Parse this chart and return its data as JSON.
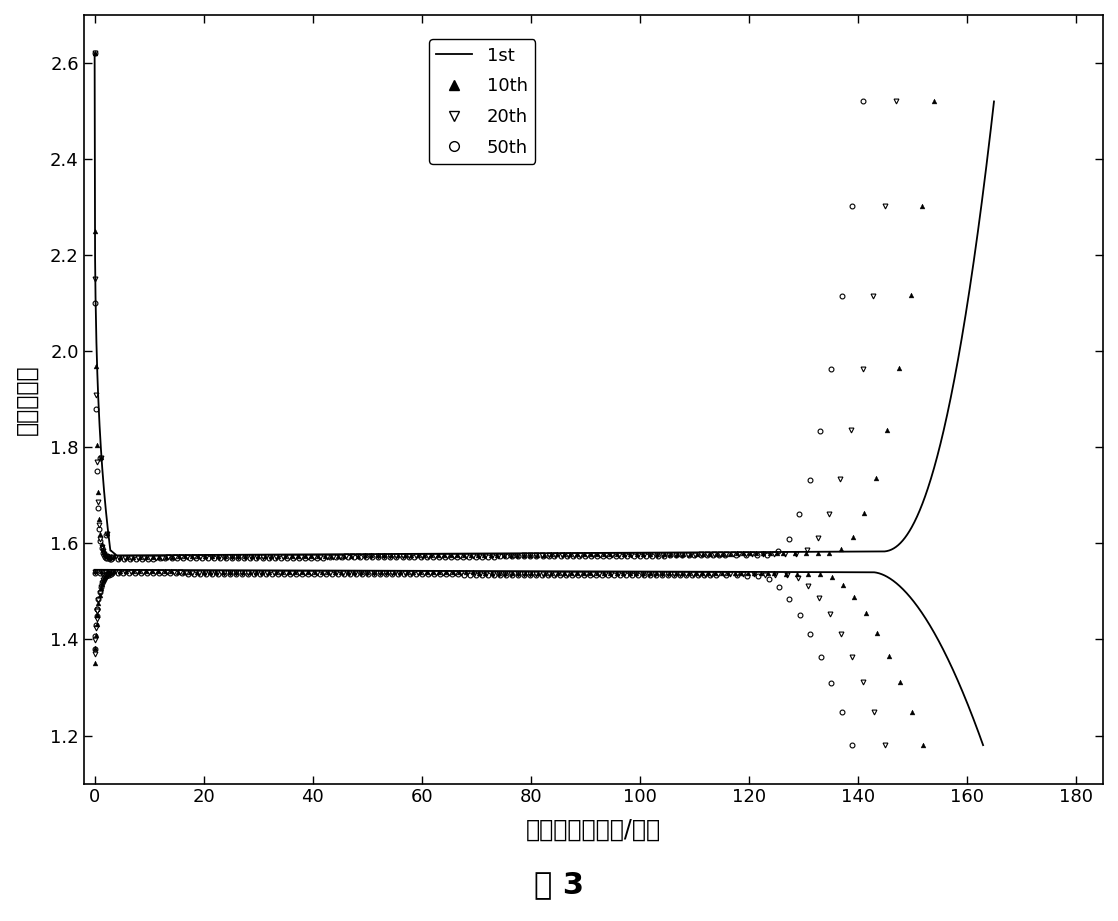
{
  "xlabel": "比容量（毫安时/克）",
  "ylabel": "电压（伏）",
  "figure_label": "图 3",
  "xlim": [
    -2,
    185
  ],
  "ylim": [
    1.1,
    2.7
  ],
  "xticks": [
    0,
    20,
    40,
    60,
    80,
    100,
    120,
    140,
    160,
    180
  ],
  "yticks": [
    1.2,
    1.4,
    1.6,
    1.8,
    2.0,
    2.2,
    2.4,
    2.6
  ],
  "background_color": "white",
  "cap_1st_charge": 165,
  "cap_1st_discharge": 163,
  "cap_10th_charge": 154,
  "cap_10th_discharge": 152,
  "cap_20th_charge": 147,
  "cap_20th_discharge": 145,
  "cap_50th_charge": 141,
  "cap_50th_discharge": 139,
  "v_plateau_charge_1st": 1.575,
  "v_plateau_charge_10th": 1.572,
  "v_plateau_charge_20th": 1.57,
  "v_plateau_charge_50th": 1.568,
  "v_plateau_discharge_1st": 1.545,
  "v_plateau_discharge_10th": 1.542,
  "v_plateau_discharge_20th": 1.54,
  "v_plateau_discharge_50th": 1.538,
  "n_markers": 120
}
